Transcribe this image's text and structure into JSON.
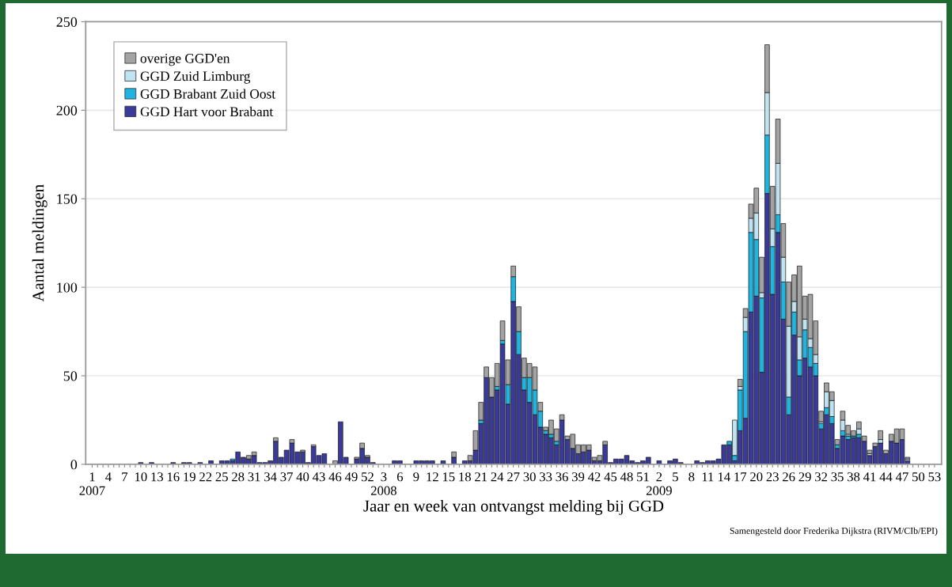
{
  "chart_data": {
    "type": "bar",
    "stacked": true,
    "xlabel": "Jaar en week van ontvangst melding bij GGD",
    "ylabel": "Aantal meldingen",
    "categories": [
      "1\n2007",
      null,
      null,
      "4",
      null,
      null,
      "7",
      null,
      null,
      "10",
      null,
      null,
      "13",
      null,
      null,
      "16",
      null,
      null,
      "19",
      null,
      null,
      "22",
      null,
      null,
      "25",
      null,
      null,
      "28",
      null,
      null,
      "31",
      null,
      null,
      "34",
      null,
      null,
      "37",
      null,
      null,
      "40",
      null,
      null,
      "43",
      null,
      null,
      "46",
      null,
      null,
      "49",
      null,
      null,
      "52",
      null,
      null,
      "3\n2008",
      null,
      null,
      "6",
      null,
      null,
      "9",
      null,
      null,
      "12",
      null,
      null,
      "15",
      null,
      null,
      "18",
      null,
      null,
      "21",
      null,
      null,
      "24",
      null,
      null,
      "27",
      null,
      null,
      "30",
      null,
      null,
      "33",
      null,
      null,
      "36",
      null,
      null,
      "39",
      null,
      null,
      "42",
      null,
      null,
      "45",
      null,
      null,
      "48",
      null,
      null,
      "51",
      null,
      null,
      "2\n2009",
      null,
      null,
      "5",
      null,
      null,
      "8",
      null,
      null,
      "11",
      null,
      null,
      "14",
      null,
      null,
      "17",
      null,
      null,
      "20",
      null,
      null,
      "23",
      null,
      null,
      "26",
      null,
      null,
      "29",
      null,
      null,
      "32",
      null,
      null,
      "35",
      null,
      null,
      "38",
      null,
      null,
      "41",
      null,
      null,
      "44",
      null,
      null,
      "47",
      null,
      null,
      "50",
      null,
      null,
      "53"
    ],
    "series": [
      {
        "name": "GGD Hart voor Brabant",
        "color": "#3a3a9a",
        "values": [
          0,
          0,
          0,
          0,
          0,
          0,
          0,
          0,
          0,
          1,
          0,
          1,
          0,
          0,
          0,
          1,
          0,
          1,
          1,
          0,
          1,
          0,
          2,
          0,
          2,
          2,
          2,
          7,
          4,
          3,
          5,
          1,
          1,
          2,
          13,
          4,
          8,
          12,
          7,
          7,
          1,
          10,
          5,
          6,
          0,
          0,
          24,
          4,
          0,
          3,
          9,
          4,
          1,
          0,
          0,
          0,
          2,
          2,
          0,
          0,
          2,
          2,
          2,
          2,
          0,
          2,
          0,
          4,
          0,
          2,
          2,
          8,
          23,
          49,
          38,
          42,
          68,
          34,
          92,
          62,
          42,
          35,
          28,
          21,
          17,
          15,
          11,
          25,
          14,
          9,
          6,
          7,
          8,
          2,
          2,
          11,
          1,
          3,
          3,
          5,
          2,
          1,
          2,
          4,
          0,
          2,
          0,
          2,
          3,
          1,
          0,
          0,
          2,
          1,
          2,
          2,
          3,
          11,
          11,
          2,
          19,
          26,
          86,
          95,
          52,
          153,
          96,
          131,
          82,
          28,
          73,
          50,
          60,
          55,
          50,
          20,
          28,
          23,
          9,
          16,
          14,
          15,
          15,
          13,
          5,
          10,
          12,
          6,
          13,
          12,
          14,
          2,
          0,
          0,
          0,
          0,
          0
        ]
      },
      {
        "name": "GGD Brabant Zuid Oost",
        "color": "#1fb5e0",
        "values": [
          0,
          0,
          0,
          0,
          0,
          0,
          0,
          0,
          0,
          0,
          0,
          0,
          0,
          0,
          0,
          0,
          0,
          0,
          0,
          0,
          0,
          0,
          0,
          0,
          0,
          0,
          1,
          0,
          0,
          0,
          0,
          0,
          0,
          0,
          0,
          0,
          0,
          0,
          0,
          0,
          0,
          0,
          0,
          0,
          0,
          0,
          0,
          0,
          0,
          0,
          0,
          0,
          0,
          0,
          0,
          0,
          0,
          0,
          0,
          0,
          0,
          0,
          0,
          0,
          0,
          0,
          0,
          0,
          0,
          0,
          0,
          0,
          2,
          0,
          0,
          2,
          2,
          11,
          14,
          13,
          7,
          14,
          14,
          9,
          2,
          2,
          2,
          0,
          0,
          0,
          0,
          0,
          0,
          0,
          0,
          0,
          0,
          0,
          0,
          0,
          0,
          0,
          0,
          0,
          0,
          0,
          0,
          0,
          0,
          0,
          0,
          0,
          0,
          0,
          0,
          0,
          0,
          0,
          2,
          3,
          23,
          49,
          45,
          32,
          42,
          33,
          27,
          10,
          21,
          10,
          13,
          9,
          16,
          11,
          7,
          3,
          4,
          4,
          2,
          3,
          2,
          1,
          2,
          0,
          0,
          0,
          0,
          0,
          0,
          0,
          0,
          0,
          0,
          0,
          0,
          0,
          0
        ]
      },
      {
        "name": "GGD Zuid Limburg",
        "color": "#bfe3f0",
        "values": [
          0,
          0,
          0,
          0,
          0,
          0,
          0,
          0,
          0,
          0,
          0,
          0,
          0,
          0,
          0,
          0,
          0,
          0,
          0,
          0,
          0,
          0,
          0,
          0,
          0,
          0,
          0,
          0,
          0,
          0,
          0,
          0,
          0,
          0,
          0,
          0,
          0,
          0,
          0,
          0,
          0,
          0,
          0,
          0,
          0,
          0,
          0,
          0,
          0,
          0,
          0,
          0,
          0,
          0,
          0,
          0,
          0,
          0,
          0,
          0,
          0,
          0,
          0,
          0,
          0,
          0,
          0,
          0,
          0,
          0,
          0,
          0,
          0,
          0,
          0,
          0,
          0,
          0,
          0,
          0,
          0,
          0,
          0,
          0,
          0,
          0,
          0,
          0,
          0,
          0,
          0,
          0,
          0,
          0,
          0,
          0,
          0,
          0,
          0,
          0,
          0,
          0,
          0,
          0,
          0,
          0,
          0,
          0,
          0,
          0,
          0,
          0,
          0,
          0,
          0,
          0,
          0,
          0,
          0,
          20,
          2,
          8,
          8,
          15,
          3,
          24,
          10,
          29,
          14,
          40,
          6,
          13,
          6,
          5,
          5,
          1,
          9,
          9,
          0,
          6,
          1,
          0,
          3,
          0,
          1,
          0,
          2,
          0,
          0,
          0,
          0,
          1,
          0,
          0,
          0,
          0,
          0
        ]
      },
      {
        "name": "overige GGD'en",
        "color": "#a3a3a3",
        "values": [
          0,
          0,
          0,
          0,
          0,
          0,
          0,
          0,
          0,
          0,
          0,
          0,
          0,
          0,
          0,
          0,
          0,
          0,
          0,
          0,
          0,
          0,
          0,
          0,
          0,
          0,
          0,
          0,
          0,
          2,
          2,
          0,
          0,
          0,
          2,
          0,
          0,
          2,
          0,
          1,
          0,
          1,
          0,
          0,
          0,
          2,
          0,
          0,
          0,
          1,
          3,
          1,
          0,
          0,
          0,
          0,
          0,
          0,
          0,
          0,
          0,
          0,
          0,
          0,
          0,
          0,
          0,
          3,
          0,
          0,
          3,
          11,
          10,
          6,
          11,
          13,
          11,
          14,
          6,
          14,
          11,
          8,
          13,
          5,
          2,
          8,
          7,
          3,
          2,
          8,
          5,
          4,
          3,
          2,
          3,
          2,
          0,
          0,
          0,
          0,
          0,
          0,
          0,
          0,
          0,
          0,
          0,
          0,
          0,
          0,
          0,
          0,
          0,
          0,
          0,
          0,
          0,
          0,
          0,
          0,
          4,
          5,
          8,
          14,
          20,
          27,
          24,
          25,
          19,
          25,
          15,
          40,
          13,
          25,
          19,
          6,
          5,
          5,
          3,
          5,
          5,
          3,
          4,
          3,
          2,
          2,
          5,
          2,
          4,
          8,
          6,
          1,
          0,
          0,
          0,
          0,
          0
        ]
      }
    ],
    "ylim": [
      0,
      250
    ],
    "yticks": [
      0,
      50,
      100,
      150,
      200,
      250
    ],
    "grid": "y",
    "legend": "top left",
    "annotations": [
      "Samengesteld door Frederika Dijkstra (RIVM/CIb/EPI)"
    ]
  }
}
